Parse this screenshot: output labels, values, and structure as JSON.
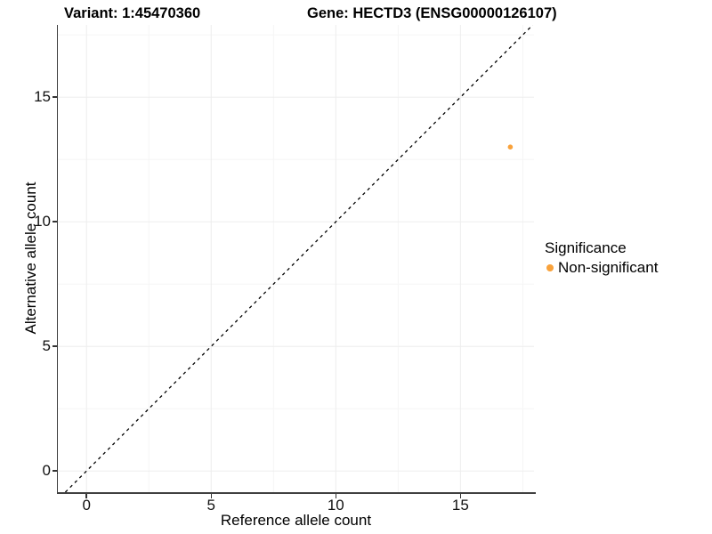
{
  "chart_data": {
    "type": "scatter",
    "titles": {
      "left": "Variant: 1:45470360",
      "right": "Gene: HECTD3 (ENSG00000126107)"
    },
    "xlabel": "Reference allele count",
    "ylabel": "Alternative allele count",
    "xlim": [
      -1.15,
      17.95
    ],
    "ylim": [
      -0.85,
      17.9
    ],
    "x_ticks": [
      0,
      5,
      10,
      15
    ],
    "y_ticks": [
      0,
      5,
      10,
      15
    ],
    "x_minor_ticks": [
      2.5,
      7.5,
      12.5,
      17.5
    ],
    "y_minor_ticks": [
      2.5,
      7.5,
      12.5,
      17.5
    ],
    "grid": {
      "visible": true,
      "major_color": "#EDEDED",
      "minor_color": "#F5F5F5"
    },
    "identity_line": {
      "type": "abline",
      "slope": 1,
      "intercept": 0,
      "style": "dashed",
      "color": "#000000"
    },
    "series": [
      {
        "name": "Non-significant",
        "color": "#F9A23B",
        "points": [
          {
            "x": 17,
            "y": 13
          }
        ]
      }
    ],
    "legend": {
      "title": "Significance",
      "position": "right",
      "entries": [
        {
          "label": "Non-significant",
          "color": "#F9A23B"
        }
      ]
    },
    "theme": {
      "background": "#FFFFFF",
      "axis_color": "#404040",
      "text_color": "#000000"
    }
  }
}
